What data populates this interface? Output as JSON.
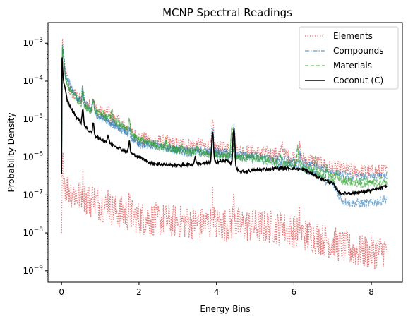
{
  "chart_data": {
    "type": "line",
    "title": "MCNP Spectral Readings",
    "xlabel": "Energy Bins",
    "ylabel": "Probability Density",
    "yscale": "log",
    "xlim": [
      -0.35,
      8.8
    ],
    "ylim": [
      5e-10,
      0.0035
    ],
    "xticks": [
      0,
      2,
      4,
      6,
      8
    ],
    "xtick_labels": [
      "0",
      "2",
      "4",
      "6",
      "8"
    ],
    "yticks": [
      1e-09,
      1e-08,
      1e-07,
      1e-06,
      1e-05,
      0.0001,
      0.001
    ],
    "ytick_exponents": [
      "−9",
      "−8",
      "−7",
      "−6",
      "−5",
      "−4",
      "−3"
    ],
    "ytick_base": "10",
    "grid": false,
    "legend_position": "top-right",
    "series": [
      {
        "name": "Elements",
        "color": "#d62728",
        "style": "dotted",
        "curves": [
          {
            "points": [
              [
                0,
                3e-07
              ],
              [
                0.02,
                0.0015
              ],
              [
                0.08,
                0.0002
              ],
              [
                0.2,
                6e-05
              ],
              [
                0.5,
                3e-05
              ],
              [
                1,
                1.5e-05
              ],
              [
                1.5,
                8e-06
              ],
              [
                2,
                3e-06
              ],
              [
                2.5,
                2.5e-06
              ],
              [
                3,
                2.2e-06
              ],
              [
                3.5,
                2e-06
              ],
              [
                4,
                1.8e-06
              ],
              [
                4.5,
                1.5e-06
              ],
              [
                5,
                1.3e-06
              ],
              [
                5.5,
                1.2e-06
              ],
              [
                6,
                1e-06
              ],
              [
                6.5,
                8e-07
              ],
              [
                7,
                5e-07
              ],
              [
                7.5,
                4.5e-07
              ],
              [
                8,
                4e-07
              ],
              [
                8.4,
                4.2e-07
              ]
            ],
            "noise": 0.2
          },
          {
            "points": [
              [
                0,
                1e-08
              ],
              [
                0.02,
                8e-07
              ],
              [
                0.1,
                1.7e-07
              ],
              [
                0.3,
                1.1e-07
              ],
              [
                0.6,
                8e-08
              ],
              [
                1,
                5.5e-08
              ],
              [
                1.5,
                3.5e-08
              ],
              [
                2,
                2.5e-08
              ],
              [
                2.5,
                2.2e-08
              ],
              [
                3,
                2e-08
              ],
              [
                3.5,
                1.8e-08
              ],
              [
                4,
                1.7e-08
              ],
              [
                4.5,
                1.6e-08
              ],
              [
                5,
                1.5e-08
              ],
              [
                5.5,
                1.4e-08
              ],
              [
                6,
                1.1e-08
              ],
              [
                6.5,
                8e-09
              ],
              [
                7,
                5.5e-09
              ],
              [
                7.5,
                3.5e-09
              ],
              [
                8,
                3e-09
              ],
              [
                8.4,
                3.5e-09
              ]
            ],
            "noise": 0.45
          }
        ]
      },
      {
        "name": "Compounds",
        "color": "#1f77b4",
        "style": "dashdot",
        "curves": [
          {
            "points": [
              [
                0,
                5e-07
              ],
              [
                0.02,
                0.001
              ],
              [
                0.1,
                0.00015
              ],
              [
                0.3,
                5e-05
              ],
              [
                0.6,
                2.5e-05
              ],
              [
                1,
                1.2e-05
              ],
              [
                1.5,
                6e-06
              ],
              [
                2,
                2.5e-06
              ],
              [
                2.5,
                2e-06
              ],
              [
                3,
                1.5e-06
              ],
              [
                3.5,
                1.3e-06
              ],
              [
                4,
                1.2e-06
              ],
              [
                4.5,
                1.1e-06
              ],
              [
                5,
                9e-07
              ],
              [
                5.5,
                7e-07
              ],
              [
                6,
                6e-07
              ],
              [
                6.5,
                4e-07
              ],
              [
                7,
                2e-07
              ],
              [
                7.25,
                7e-08
              ],
              [
                7.5,
                6e-08
              ],
              [
                8,
                6e-08
              ],
              [
                8.4,
                8e-08
              ]
            ],
            "noise": 0.12
          },
          {
            "points": [
              [
                0,
                6e-07
              ],
              [
                0.02,
                0.0009
              ],
              [
                0.1,
                0.00013
              ],
              [
                0.3,
                4.5e-05
              ],
              [
                0.6,
                2.2e-05
              ],
              [
                1,
                1.1e-05
              ],
              [
                1.5,
                5.5e-06
              ],
              [
                2,
                2.2e-06
              ],
              [
                2.5,
                1.8e-06
              ],
              [
                3,
                1.6e-06
              ],
              [
                3.5,
                1.5e-06
              ],
              [
                4,
                1.4e-06
              ],
              [
                4.5,
                1.2e-06
              ],
              [
                5,
                1.1e-06
              ],
              [
                5.5,
                9e-07
              ],
              [
                6,
                8e-07
              ],
              [
                6.5,
                6e-07
              ],
              [
                7,
                4e-07
              ],
              [
                7.5,
                3e-07
              ],
              [
                8,
                3e-07
              ],
              [
                8.4,
                3.3e-07
              ]
            ],
            "noise": 0.1
          }
        ]
      },
      {
        "name": "Materials",
        "color": "#2ca02c",
        "style": "dashed",
        "curves": [
          {
            "points": [
              [
                0,
                6e-07
              ],
              [
                0.02,
                0.0008
              ],
              [
                0.1,
                0.0001
              ],
              [
                0.3,
                4e-05
              ],
              [
                0.6,
                2e-05
              ],
              [
                1,
                1.5e-05
              ],
              [
                1.5,
                8e-06
              ],
              [
                2,
                3e-06
              ],
              [
                2.5,
                2e-06
              ],
              [
                3,
                1.5e-06
              ],
              [
                3.5,
                1.3e-06
              ],
              [
                4,
                1.1e-06
              ],
              [
                4.5,
                1e-06
              ],
              [
                5,
                9e-07
              ],
              [
                5.5,
                7e-07
              ],
              [
                6,
                6e-07
              ],
              [
                6.5,
                4e-07
              ],
              [
                7,
                2.5e-07
              ],
              [
                7.5,
                2e-07
              ],
              [
                8,
                1.9e-07
              ],
              [
                8.4,
                2.1e-07
              ]
            ],
            "noise": 0.1
          },
          {
            "points": [
              [
                0,
                7e-07
              ],
              [
                0.02,
                0.0009
              ],
              [
                0.1,
                0.00011
              ],
              [
                0.3,
                4.5e-05
              ],
              [
                0.6,
                2.2e-05
              ],
              [
                1,
                1.4e-05
              ],
              [
                1.5,
                7e-06
              ],
              [
                2,
                2.8e-06
              ],
              [
                2.5,
                1.9e-06
              ],
              [
                3,
                1.6e-06
              ],
              [
                3.5,
                1.4e-06
              ],
              [
                4,
                1.2e-06
              ],
              [
                4.5,
                1.1e-06
              ],
              [
                5,
                1e-06
              ],
              [
                5.5,
                8e-07
              ],
              [
                6,
                7e-07
              ],
              [
                6.5,
                5e-07
              ],
              [
                7,
                3e-07
              ],
              [
                7.5,
                2.3e-07
              ],
              [
                8,
                2.2e-07
              ],
              [
                8.4,
                2.4e-07
              ]
            ],
            "noise": 0.1
          }
        ]
      },
      {
        "name": "Coconut (C)",
        "color": "#000000",
        "style": "solid",
        "curves": [
          {
            "points": [
              [
                0,
                3.5e-07
              ],
              [
                0.01,
                0.00045
              ],
              [
                0.05,
                0.0001
              ],
              [
                0.15,
                3e-05
              ],
              [
                0.3,
                1.5e-05
              ],
              [
                0.5,
                8e-06
              ],
              [
                0.8,
                4e-06
              ],
              [
                1,
                3e-06
              ],
              [
                1.3,
                2.2e-06
              ],
              [
                1.6,
                1.5e-06
              ],
              [
                2,
                1e-06
              ],
              [
                2.3,
                7e-07
              ],
              [
                2.5,
                6.5e-07
              ],
              [
                3,
                6e-07
              ],
              [
                3.5,
                6.5e-07
              ],
              [
                3.8,
                7e-07
              ],
              [
                4,
                7.5e-07
              ],
              [
                4.3,
                8e-07
              ],
              [
                4.6,
                4e-07
              ],
              [
                5,
                4.5e-07
              ],
              [
                5.5,
                5e-07
              ],
              [
                6,
                5e-07
              ],
              [
                6.3,
                4.5e-07
              ],
              [
                6.6,
                3e-07
              ],
              [
                7,
                2e-07
              ],
              [
                7.2,
                1.1e-07
              ],
              [
                7.5,
                1.1e-07
              ],
              [
                8,
                1.3e-07
              ],
              [
                8.4,
                1.7e-07
              ]
            ],
            "noise": 0.04
          }
        ]
      }
    ],
    "peaks": [
      {
        "series": "Elements",
        "x": 0.55,
        "factor": 2.2
      },
      {
        "series": "Elements",
        "x": 0.82,
        "factor": 2.0
      },
      {
        "series": "Elements",
        "x": 1.2,
        "factor": 1.8
      },
      {
        "series": "Elements",
        "x": 1.75,
        "factor": 1.6
      },
      {
        "series": "Elements",
        "x": 3.9,
        "factor": 4.0
      },
      {
        "series": "Elements",
        "x": 4.45,
        "factor": 4.0
      },
      {
        "series": "Elements",
        "x": 5.7,
        "factor": 1.9
      },
      {
        "series": "Elements",
        "x": 6.15,
        "factor": 2.0
      },
      {
        "series": "Compounds",
        "x": 0.55,
        "factor": 2.2
      },
      {
        "series": "Compounds",
        "x": 0.82,
        "factor": 2.1
      },
      {
        "series": "Compounds",
        "x": 1.75,
        "factor": 1.8
      },
      {
        "series": "Compounds",
        "x": 3.9,
        "factor": 4.0
      },
      {
        "series": "Compounds",
        "x": 4.45,
        "factor": 5.0
      },
      {
        "series": "Compounds",
        "x": 6.15,
        "factor": 2.0
      },
      {
        "series": "Materials",
        "x": 0.55,
        "factor": 2.4
      },
      {
        "series": "Materials",
        "x": 0.82,
        "factor": 2.0
      },
      {
        "series": "Materials",
        "x": 1.3,
        "factor": 1.6
      },
      {
        "series": "Materials",
        "x": 1.75,
        "factor": 2.5
      },
      {
        "series": "Materials",
        "x": 2.7,
        "factor": 1.5
      },
      {
        "series": "Materials",
        "x": 3.1,
        "factor": 1.4
      },
      {
        "series": "Materials",
        "x": 3.5,
        "factor": 1.6
      },
      {
        "series": "Materials",
        "x": 3.9,
        "factor": 3.0
      },
      {
        "series": "Materials",
        "x": 4.4,
        "factor": 6.0
      },
      {
        "series": "Materials",
        "x": 5.65,
        "factor": 1.6
      },
      {
        "series": "Materials",
        "x": 6.1,
        "factor": 3.0
      },
      {
        "series": "Materials",
        "x": 6.55,
        "factor": 1.8
      },
      {
        "series": "Materials",
        "x": 6.85,
        "factor": 1.6
      },
      {
        "series": "Materials",
        "x": 7.1,
        "factor": 1.7
      },
      {
        "series": "Coconut (C)",
        "x": 0.55,
        "factor": 2.5
      },
      {
        "series": "Coconut (C)",
        "x": 0.82,
        "factor": 2.0
      },
      {
        "series": "Coconut (C)",
        "x": 1.2,
        "factor": 1.5
      },
      {
        "series": "Coconut (C)",
        "x": 1.75,
        "factor": 2.0
      },
      {
        "series": "Coconut (C)",
        "x": 3.45,
        "factor": 1.6
      },
      {
        "series": "Coconut (C)",
        "x": 3.9,
        "factor": 6.0
      },
      {
        "series": "Coconut (C)",
        "x": 4.45,
        "factor": 10.0
      }
    ]
  }
}
